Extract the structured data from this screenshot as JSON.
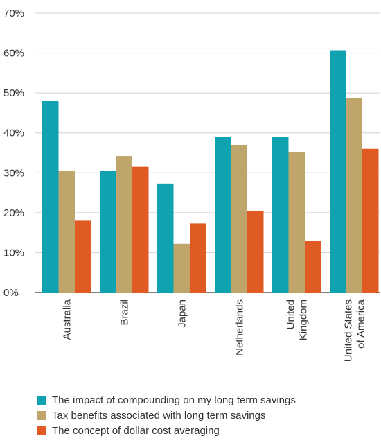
{
  "chart_data": {
    "type": "bar",
    "categories": [
      [
        "Australia"
      ],
      [
        "Brazil"
      ],
      [
        "Japan"
      ],
      [
        "Netherlands"
      ],
      [
        "United",
        "Kingdom"
      ],
      [
        "United States",
        "of America"
      ]
    ],
    "series": [
      {
        "name": "The impact of compounding on my long term savings",
        "color": "#0FA3B1",
        "values": [
          48,
          30.5,
          27.3,
          39,
          39,
          60.7
        ]
      },
      {
        "name": "Tax benefits associated with long term savings",
        "color": "#BFA46C",
        "values": [
          30.4,
          34.2,
          12.2,
          37,
          35.1,
          48.8
        ]
      },
      {
        "name": "The concept of dollar cost averaging",
        "color": "#E05A24",
        "values": [
          18,
          31.5,
          17.3,
          20.5,
          12.9,
          36
        ]
      }
    ],
    "y_ticks": [
      "0%",
      "10%",
      "20%",
      "30%",
      "40%",
      "50%",
      "60%",
      "70%"
    ],
    "ylim": [
      0,
      70
    ],
    "grid": true,
    "legend_position": "bottom"
  }
}
